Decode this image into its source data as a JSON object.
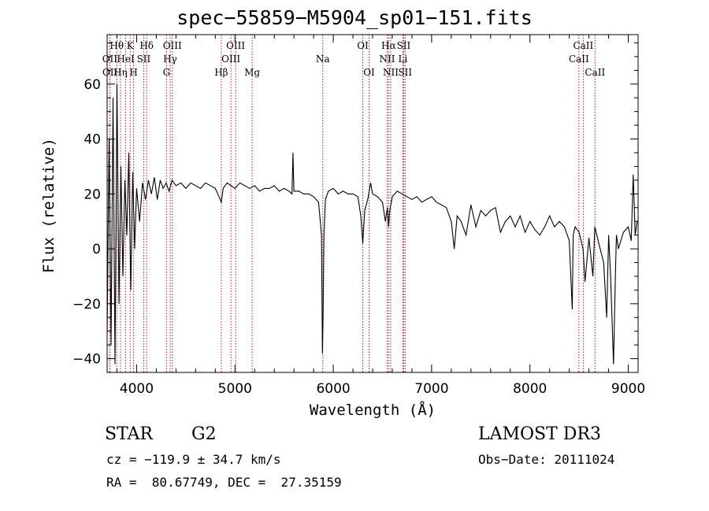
{
  "header": {
    "title": "spec−55859−M5904_sp01−151.fits"
  },
  "footer": {
    "object_class": "STAR",
    "subclass": "G2",
    "survey": "LAMOST DR3",
    "cz": "cz = −119.9 ± 34.7 km/s",
    "obs_date": "Obs−Date: 20111024",
    "coords": "RA =  80.67749, DEC =  27.35159"
  },
  "colors": {
    "line_marker": "#b22222",
    "spectrum": "#000000",
    "axes": "#000000"
  },
  "chart_data": {
    "type": "line",
    "title": "spec−55859−M5904_sp01−151.fits",
    "xlabel": "Wavelength (Å)",
    "ylabel": "Flux (relative)",
    "xlim": [
      3700,
      9100
    ],
    "ylim": [
      -45,
      78
    ],
    "xticks": [
      4000,
      5000,
      6000,
      7000,
      8000,
      9000
    ],
    "yticks": [
      -40,
      -20,
      0,
      20,
      40,
      60
    ],
    "series": [
      {
        "name": "spectrum",
        "x": [
          3700,
          3720,
          3740,
          3760,
          3780,
          3800,
          3820,
          3840,
          3860,
          3880,
          3900,
          3920,
          3940,
          3960,
          3980,
          4000,
          4030,
          4060,
          4090,
          4120,
          4150,
          4180,
          4210,
          4240,
          4270,
          4300,
          4330,
          4360,
          4400,
          4450,
          4500,
          4550,
          4600,
          4650,
          4700,
          4750,
          4800,
          4850,
          4861,
          4880,
          4920,
          4960,
          5000,
          5050,
          5100,
          5150,
          5200,
          5250,
          5300,
          5350,
          5400,
          5450,
          5500,
          5550,
          5580,
          5590,
          5600,
          5650,
          5700,
          5750,
          5800,
          5850,
          5880,
          5890,
          5896,
          5905,
          5920,
          5950,
          6000,
          6050,
          6100,
          6150,
          6200,
          6250,
          6280,
          6300,
          6320,
          6350,
          6380,
          6400,
          6450,
          6500,
          6530,
          6550,
          6563,
          6575,
          6600,
          6650,
          6700,
          6750,
          6800,
          6850,
          6900,
          6950,
          7000,
          7050,
          7100,
          7150,
          7200,
          7230,
          7260,
          7300,
          7350,
          7400,
          7450,
          7500,
          7550,
          7600,
          7650,
          7700,
          7750,
          7800,
          7850,
          7900,
          7950,
          8000,
          8050,
          8100,
          8150,
          8200,
          8250,
          8300,
          8350,
          8400,
          8430,
          8440,
          8460,
          8500,
          8540,
          8560,
          8600,
          8640,
          8660,
          8700,
          8750,
          8780,
          8800,
          8820,
          8850,
          8870,
          8880,
          8900,
          8950,
          9000,
          9030,
          9050,
          9070,
          9090
        ],
        "values": [
          -30,
          40,
          -35,
          55,
          -42,
          60,
          -20,
          30,
          -10,
          25,
          5,
          35,
          -15,
          28,
          0,
          22,
          10,
          24,
          18,
          25,
          20,
          26,
          18,
          25,
          22,
          24,
          21,
          25,
          23,
          24,
          22,
          24,
          23,
          22,
          24,
          23,
          22,
          18,
          17,
          22,
          24,
          23,
          22,
          24,
          23,
          22,
          23,
          21,
          22,
          22,
          23,
          21,
          22,
          21,
          20,
          35,
          21,
          21,
          20,
          20,
          19,
          17,
          5,
          -38,
          -25,
          5,
          18,
          21,
          22,
          20,
          21,
          20,
          20,
          19,
          12,
          2,
          14,
          18,
          24,
          20,
          19,
          17,
          10,
          15,
          8,
          14,
          19,
          21,
          20,
          19,
          18,
          19,
          17,
          18,
          19,
          17,
          16,
          15,
          10,
          0,
          12,
          10,
          5,
          16,
          8,
          14,
          12,
          14,
          15,
          6,
          10,
          12,
          8,
          12,
          6,
          10,
          7,
          5,
          8,
          12,
          8,
          10,
          8,
          3,
          -22,
          5,
          8,
          6,
          0,
          -12,
          4,
          -10,
          8,
          2,
          -5,
          -25,
          5,
          -10,
          -42,
          -8,
          5,
          0,
          6,
          8,
          3,
          27,
          5,
          10
        ]
      }
    ],
    "line_markers": [
      {
        "label": "Hθ",
        "x": 3798,
        "row": 1
      },
      {
        "label": "OII",
        "x": 3727,
        "row": 2
      },
      {
        "label": "OII",
        "x": 3729,
        "row": 3
      },
      {
        "label": "Hη",
        "x": 3835,
        "row": 3
      },
      {
        "label": "K",
        "x": 3934,
        "row": 1
      },
      {
        "label": "HeI",
        "x": 3889,
        "row": 2
      },
      {
        "label": "H",
        "x": 3969,
        "row": 3
      },
      {
        "label": "SII",
        "x": 4072,
        "row": 2
      },
      {
        "label": "Hδ",
        "x": 4102,
        "row": 1
      },
      {
        "label": "OIII",
        "x": 4363,
        "row": 1
      },
      {
        "label": "Hγ",
        "x": 4341,
        "row": 2
      },
      {
        "label": "G",
        "x": 4304,
        "row": 3
      },
      {
        "label": "Hβ",
        "x": 4861,
        "row": 3
      },
      {
        "label": "OIII",
        "x": 5007,
        "row": 1
      },
      {
        "label": "OIII",
        "x": 4959,
        "row": 2
      },
      {
        "label": "Mg",
        "x": 5175,
        "row": 3
      },
      {
        "label": "Na",
        "x": 5893,
        "row": 2
      },
      {
        "label": "OI",
        "x": 6300,
        "row": 1
      },
      {
        "label": "OI",
        "x": 6364,
        "row": 3
      },
      {
        "label": "Hα",
        "x": 6563,
        "row": 1
      },
      {
        "label": "SII",
        "x": 6716,
        "row": 1
      },
      {
        "label": "NII",
        "x": 6548,
        "row": 2
      },
      {
        "label": "Li",
        "x": 6708,
        "row": 2
      },
      {
        "label": "NII",
        "x": 6584,
        "row": 3
      },
      {
        "label": "SII",
        "x": 6731,
        "row": 3
      },
      {
        "label": "CaII",
        "x": 8542,
        "row": 1
      },
      {
        "label": "CaII",
        "x": 8498,
        "row": 2
      },
      {
        "label": "CaII",
        "x": 8662,
        "row": 3
      }
    ]
  }
}
